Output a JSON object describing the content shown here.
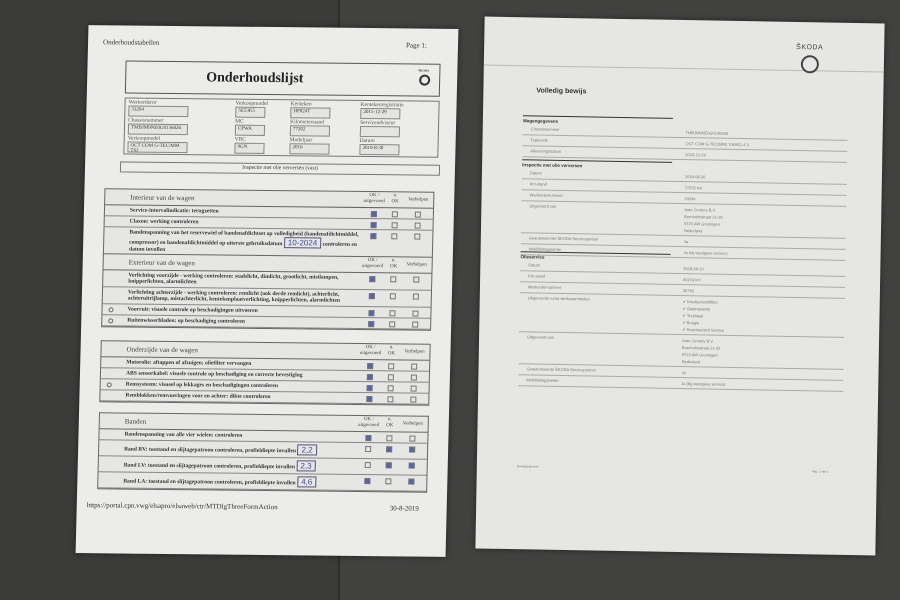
{
  "left_doc": {
    "header": "Onderhoudstabellen",
    "page": "Page 1:",
    "title": "Onderhoudslijst",
    "brand_mini": "ŠKODA",
    "fields": [
      {
        "label": "Werkordernr",
        "value": "33294"
      },
      {
        "label": "Verkoopmodel",
        "value": "5E53K5"
      },
      {
        "label": "Kenteken",
        "value": "HP024T"
      },
      {
        "label": "Kentekenregistratie",
        "value": "2015-12-29"
      },
      {
        "label": "Chassisnummer",
        "value": "TMBJM9NE0G0136026"
      },
      {
        "label": "MC",
        "value": "CPWA"
      },
      {
        "label": "Kilometerstand",
        "value": "77202"
      },
      {
        "label": "Serviceadviseur",
        "value": ""
      },
      {
        "label": "Verkoopmodel",
        "value": "OCT COM G-TEC/MM TSI"
      },
      {
        "label": "VBC",
        "value": "9GN"
      },
      {
        "label": "Modeljaar",
        "value": "2016"
      },
      {
        "label": "Datum",
        "value": "2019-8-30"
      }
    ],
    "banner": "Inspectie met olie verversen (vast)",
    "col_headers": {
      "ok": "OK / uitgevoerd",
      "nok": "n. OK",
      "fix": "Verhelpen"
    },
    "sections": [
      {
        "title": "Interieur van de wagen",
        "rows": [
          {
            "text": "Service-intervalindicatie: terugzetten",
            "check": [
              1,
              0,
              0
            ]
          },
          {
            "text": "Claxon: werking controleren",
            "check": [
              1,
              0,
              0
            ]
          },
          {
            "text": "Bandenspanning van het reservewiel of bandenafdichtset op volledigheid (bandenafdichtmiddel, compressor) en bandenafdichtmiddel op uiterste gebruiksdatum",
            "handwritten": "10-2024",
            "suffix": "controleren en datum invullen",
            "check": [
              1,
              0,
              0
            ]
          }
        ]
      },
      {
        "title": "Exterieur van de wagen",
        "rows": [
          {
            "text": "Verlichting voorzijde - werking controleren: stadslicht, dimlicht, grootlicht, mistlampen, knipperlichten, alarmlichten",
            "check": [
              1,
              0,
              0
            ]
          },
          {
            "text": "Verlichting achterzijde - werking controleren: remlicht (ook derde remlicht), achterlicht, achteruitrijlamp, mistachterlicht, kentekenplaatverlichting, knipperlichten, alarmlichten",
            "check": [
              1,
              0,
              0
            ]
          },
          {
            "text": "Voorruit: visuele controle op beschadigingen uitvoeren",
            "marker": true,
            "check": [
              1,
              0,
              0
            ]
          },
          {
            "text": "Ruitenwisserbladen: op beschadiging controleren",
            "marker": true,
            "check": [
              1,
              0,
              0
            ]
          }
        ]
      },
      {
        "title": "Onderzijde van de wagen",
        "rows": [
          {
            "text": "Motorolie: aftappen of afzuigen; oliefilter vervangen",
            "check": [
              1,
              0,
              0
            ]
          },
          {
            "text": "ABS sensorkabel: visuele controle op beschadiging en correcte bevestiging",
            "check": [
              1,
              0,
              0
            ]
          },
          {
            "text": "Remsysteem: visueel op lekkages en beschadigingen controleren",
            "marker": true,
            "check": [
              1,
              0,
              0
            ]
          },
          {
            "text": "Remblokken/remvoeringen voor en achter: dikte controleren",
            "check": [
              1,
              0,
              0
            ]
          }
        ]
      },
      {
        "title": "Banden",
        "rows": [
          {
            "text": "Bandenspanning van alle vier wielen: controleren",
            "check": [
              1,
              0,
              0
            ]
          },
          {
            "text": "Band RV: toestand en slijtagepatroon controleren, profieldiepte invullen",
            "handwritten": "2,2",
            "check": [
              0,
              1,
              1
            ]
          },
          {
            "text": "Band LV: toestand en slijtagepatroon controleren, profieldiepte invullen",
            "handwritten": "2,3",
            "check": [
              0,
              1,
              1
            ]
          },
          {
            "text": "Band LA: toestand en slijtagepatroon controleren, profieldiepte invullen",
            "handwritten": "4,6",
            "check": [
              1,
              0,
              1
            ]
          }
        ]
      }
    ],
    "footer_url": "https://portal.cpn.vwg/elsapro/elsaweb/ctr/MTDlgThreeFormAction",
    "footer_date": "30-8-2019"
  },
  "right_doc": {
    "brand": "ŠKODA",
    "title": "Volledig bewijs",
    "sections": [
      {
        "title": "Wagengegevens",
        "rows": [
          {
            "k": "Chassisnummer",
            "v": [
              "TMBJM9NE0G0136026"
            ]
          },
          {
            "k": "Typecode",
            "v": [
              "OCT COM G-TEC(MM) 70kW(1.4 l)"
            ]
          },
          {
            "k": "Afleveringsdatum",
            "v": [
              "2015-12-29"
            ]
          }
        ]
      },
      {
        "title": "Inspectie met olie verversen",
        "rows": [
          {
            "k": "Datum",
            "v": [
              "2019-08-30"
            ]
          },
          {
            "k": "Km-stand",
            "v": [
              "77202 km"
            ]
          },
          {
            "k": "Werkordernummer",
            "v": [
              "33294"
            ]
          },
          {
            "k": "Uitgevoerd van",
            "v": [
              "Auto Century B.V.",
              "Bornholmstraat 21-25",
              "9723 AW Groningen",
              "Nederland"
            ]
          },
          {
            "k": "Geautoriseerde ŠKODA Servicepartner",
            "v": [
              "Ja"
            ]
          },
          {
            "k": "Mobiliteitsgarantie",
            "v": [
              "Ja (bij weetgave service)"
            ]
          }
        ]
      },
      {
        "title": "Olieservice",
        "rows": [
          {
            "k": "Datum",
            "v": [
              "2018-09-10"
            ]
          },
          {
            "k": "Km-stand",
            "v": [
              "60219 km"
            ]
          },
          {
            "k": "Werkordernummer",
            "v": [
              "36792"
            ]
          },
          {
            "k": "Uitgevoerde extra werkzaamheden",
            "v": [
              "✔ Interieurluchtfilter",
              "✔ Gasinspectie",
              "✔ Trekhaak",
              "✔ Bougie",
              "✔ Remvloeistof Service"
            ]
          },
          {
            "k": "Uitgevoerd van",
            "v": [
              "Auto Century B.V.",
              "Bornholmstraat 21-25",
              "9723 AW Groningen",
              "Nederland"
            ]
          },
          {
            "k": "Geautoriseerde ŠKODA Servicepartner",
            "v": [
              "Ja"
            ]
          },
          {
            "k": "Mobiliteitsgarantie",
            "v": [
              "Ja (bij weetgave service)"
            ]
          }
        ]
      }
    ],
    "footer": "Bewijsgegevens",
    "page": "Pag. 1 van 1"
  }
}
